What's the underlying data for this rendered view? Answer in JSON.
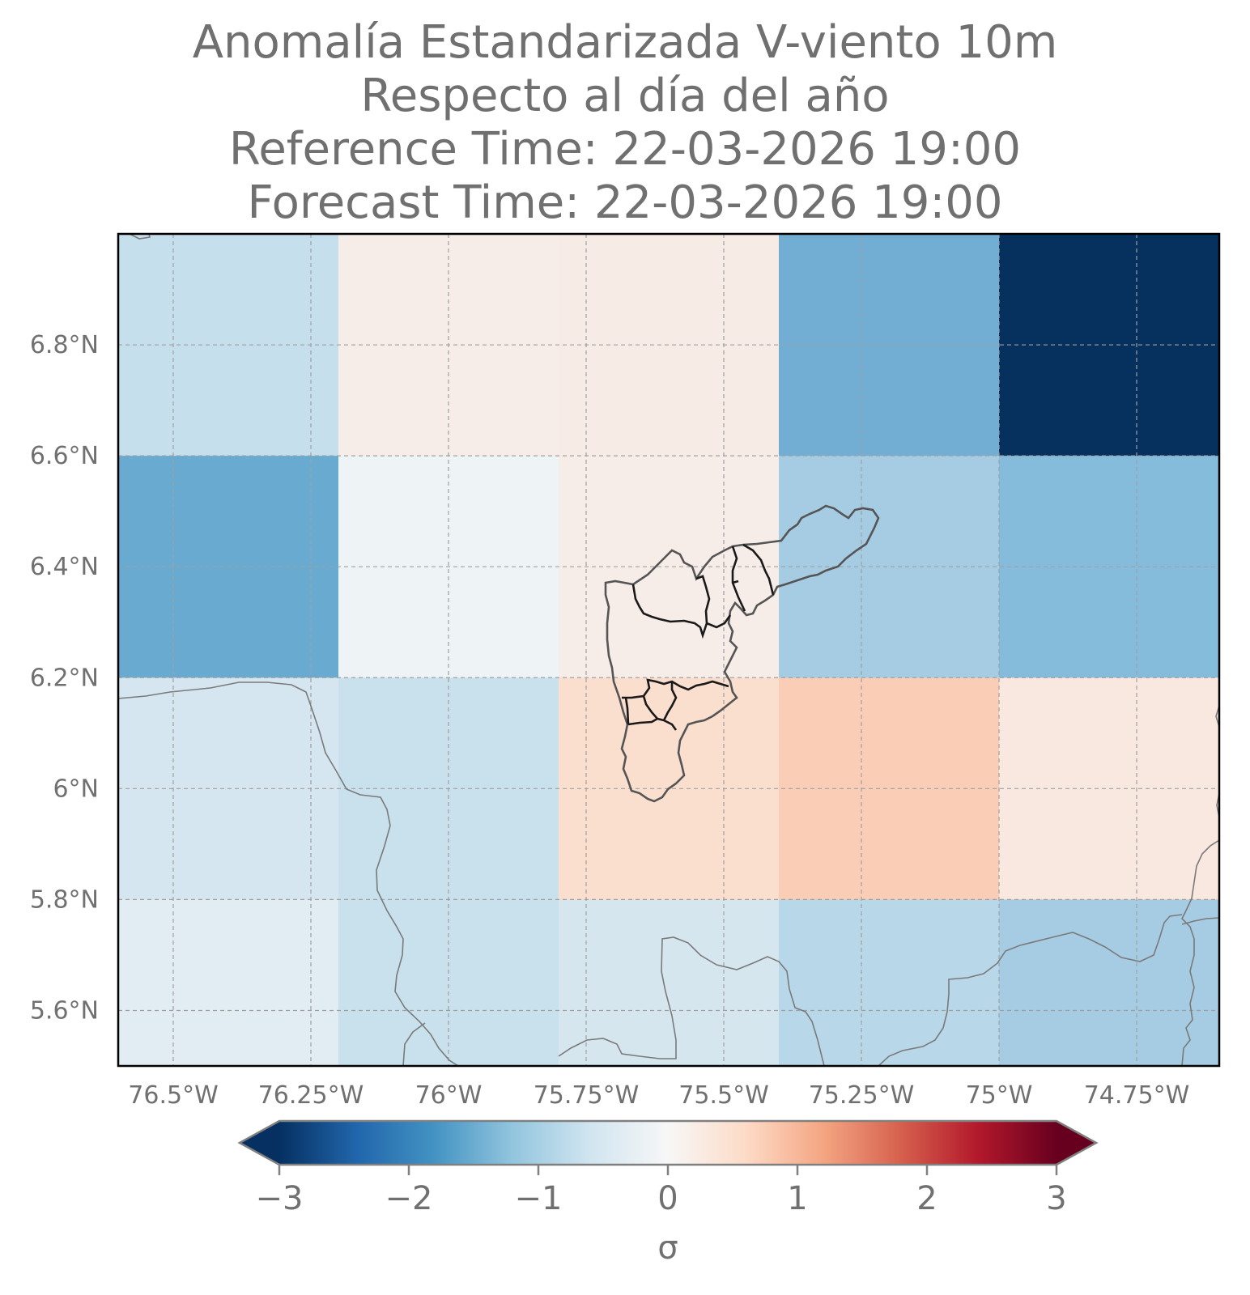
{
  "title": {
    "line1": "Anomalía Estandarizada V-viento 10m",
    "line2": "Respecto al día del año",
    "line3": "Reference Time: 22-03-2026 19:00",
    "line4": "Forecast Time: 22-03-2026 19:00"
  },
  "chart_data": {
    "type": "heatmap",
    "xlim": [
      -76.6,
      -74.6
    ],
    "ylim": [
      5.5,
      7.0
    ],
    "lon_edges": [
      -76.6,
      -76.2,
      -75.8,
      -75.4,
      -75.0,
      -74.6
    ],
    "lat_edges": [
      7.0,
      6.6,
      6.2,
      5.8,
      5.5
    ],
    "cell_colors": [
      [
        "#c6dfed",
        "#f7ede8",
        "#f7ebe6",
        "#72aed3",
        "#06305d"
      ],
      [
        "#69aad0",
        "#eef3f6",
        "#f7ede8",
        "#a6cce3",
        "#86bcdb"
      ],
      [
        "#d5e6f0",
        "#c9e0ed",
        "#fadfcf",
        "#f9cdb6",
        "#f9e8e0"
      ],
      [
        "#e1ecf3",
        "#c9e0ed",
        "#d6e6ef",
        "#b8d7e8",
        "#a6cce3"
      ]
    ],
    "x_ticks": [
      {
        "value": -76.5,
        "label": "76.5°W"
      },
      {
        "value": -76.25,
        "label": "76.25°W"
      },
      {
        "value": -76.0,
        "label": "76°W"
      },
      {
        "value": -75.75,
        "label": "75.75°W"
      },
      {
        "value": -75.5,
        "label": "75.5°W"
      },
      {
        "value": -75.25,
        "label": "75.25°W"
      },
      {
        "value": -75.0,
        "label": "75°W"
      },
      {
        "value": -74.75,
        "label": "74.75°W"
      }
    ],
    "y_ticks": [
      {
        "value": 6.8,
        "label": "6.8°N"
      },
      {
        "value": 6.6,
        "label": "6.6°N"
      },
      {
        "value": 6.4,
        "label": "6.4°N"
      },
      {
        "value": 6.2,
        "label": "6.2°N"
      },
      {
        "value": 6.0,
        "label": "6°N"
      },
      {
        "value": 5.8,
        "label": "5.8°N"
      },
      {
        "value": 5.6,
        "label": "5.6°N"
      }
    ],
    "grid": true,
    "colorbar": {
      "colormap": "RdBu_r",
      "vmin": -3,
      "vmax": 3,
      "extend": "both",
      "ticks": [
        {
          "value": -3,
          "label": "−3"
        },
        {
          "value": -2,
          "label": "−2"
        },
        {
          "value": -1,
          "label": "−1"
        },
        {
          "value": 0,
          "label": "0"
        },
        {
          "value": 1,
          "label": "1"
        },
        {
          "value": 2,
          "label": "2"
        },
        {
          "value": 3,
          "label": "3"
        }
      ],
      "label": "σ"
    }
  },
  "colors": {
    "text": "#707070",
    "grid": "#a0a0a0",
    "coastline": "#7a7a7a",
    "region_outline": "#555555",
    "inner_boundaries": "#1a1a1a"
  }
}
